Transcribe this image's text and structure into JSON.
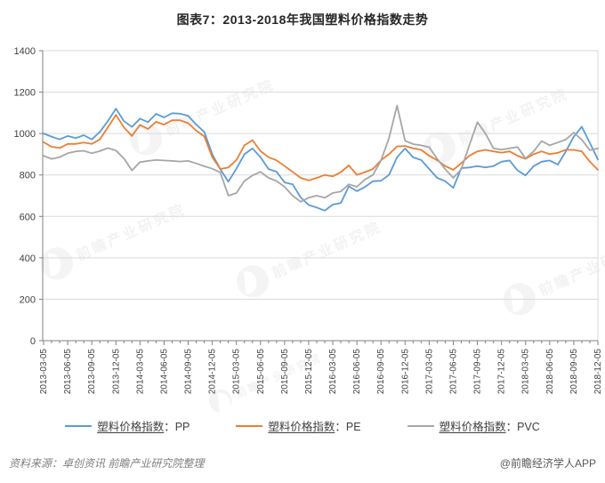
{
  "page": {
    "title": "图表7：2013-2018年我国塑料价格指数走势",
    "source_note": "资料来源：卓创资讯  前瞻产业研究院整理",
    "credit": "@前瞻经济学人APP",
    "watermark_text": "前瞻产业研究院"
  },
  "chart_data": {
    "type": "line",
    "title": "图表7：2013-2018年我国塑料价格指数走势",
    "xlabel": "",
    "ylabel": "",
    "ylim": [
      0,
      1400
    ],
    "y_tick_step": 200,
    "y_ticks": [
      0,
      200,
      400,
      600,
      800,
      1000,
      1200,
      1400
    ],
    "grid": true,
    "legend_position": "bottom",
    "axis_color": "#808080",
    "grid_color": "#d9d9d9",
    "tick_label_color": "#404040",
    "x_interval": "month",
    "x_start": "2013-03",
    "x_end": "2018-12",
    "x_tick_labels": [
      "2013-03-05",
      "2013-06-05",
      "2013-09-05",
      "2013-12-05",
      "2014-03-05",
      "2014-06-05",
      "2014-09-05",
      "2014-12-05",
      "2015-03-05",
      "2015-06-05",
      "2015-09-05",
      "2015-12-05",
      "2016-03-05",
      "2016-06-05",
      "2016-09-05",
      "2016-12-05",
      "2017-03-05",
      "2017-06-05",
      "2017-09-05",
      "2017-12-05",
      "2018-03-05",
      "2018-06-05",
      "2018-09-05",
      "2018-12-05"
    ],
    "series": [
      {
        "key": "pp",
        "name": "塑料价格指数：PP",
        "label_cn": "塑料价格指数",
        "label_suffix": "：PP",
        "color": "#5B9BD5",
        "values": [
          1000,
          985,
          972,
          988,
          978,
          992,
          972,
          1008,
          1060,
          1120,
          1060,
          1032,
          1072,
          1055,
          1095,
          1078,
          1098,
          1096,
          1085,
          1043,
          1008,
          900,
          828,
          768,
          830,
          900,
          928,
          886,
          829,
          816,
          764,
          755,
          692,
          655,
          643,
          628,
          657,
          665,
          745,
          722,
          742,
          770,
          772,
          800,
          886,
          928,
          885,
          872,
          829,
          786,
          770,
          738,
          833,
          836,
          843,
          836,
          843,
          864,
          870,
          822,
          798,
          843,
          864,
          870,
          850,
          913,
          985,
          1033,
          955,
          875
        ]
      },
      {
        "key": "pe",
        "name": "塑料价格指数：PE",
        "label_cn": "塑料价格指数",
        "label_suffix": "：PE",
        "color": "#ED7D31",
        "values": [
          958,
          936,
          930,
          950,
          950,
          957,
          950,
          972,
          1030,
          1090,
          1030,
          988,
          1042,
          1022,
          1057,
          1043,
          1064,
          1064,
          1050,
          1014,
          986,
          886,
          829,
          836,
          872,
          943,
          968,
          915,
          886,
          871,
          843,
          815,
          786,
          774,
          786,
          800,
          793,
          814,
          846,
          800,
          814,
          829,
          871,
          900,
          938,
          940,
          929,
          921,
          893,
          871,
          843,
          825,
          857,
          893,
          914,
          921,
          914,
          908,
          914,
          893,
          878,
          900,
          914,
          900,
          907,
          921,
          921,
          914,
          864,
          825
        ]
      },
      {
        "key": "pvc",
        "name": "塑料价格指数：PVC",
        "label_cn": "塑料价格指数",
        "label_suffix": "：PVC",
        "color": "#A6A6A6",
        "values": [
          893,
          878,
          886,
          905,
          914,
          917,
          905,
          915,
          930,
          918,
          880,
          822,
          862,
          868,
          872,
          870,
          868,
          865,
          868,
          856,
          842,
          830,
          812,
          700,
          713,
          771,
          798,
          815,
          786,
          771,
          743,
          700,
          671,
          690,
          700,
          690,
          713,
          720,
          755,
          743,
          778,
          800,
          870,
          978,
          1135,
          965,
          949,
          943,
          934,
          878,
          828,
          786,
          828,
          943,
          1055,
          1000,
          929,
          922,
          929,
          935,
          880,
          914,
          964,
          943,
          957,
          971,
          1005,
          970,
          920,
          928
        ]
      }
    ]
  }
}
